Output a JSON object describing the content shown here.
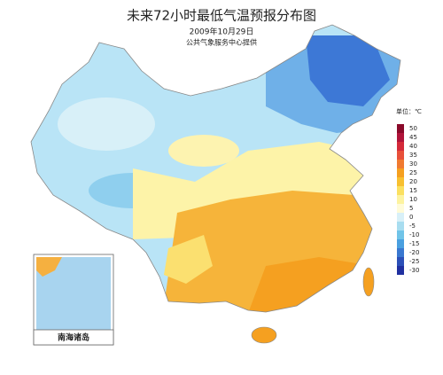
{
  "header": {
    "title": "未来72小时最低气温预报分布图",
    "date": "2009年10月29日",
    "source": "公共气象服务中心提供"
  },
  "legend": {
    "unit": "单位：℃",
    "ticks": [
      50,
      45,
      40,
      35,
      30,
      25,
      20,
      15,
      10,
      5,
      0,
      -5,
      -10,
      -15,
      -20,
      -25,
      -30
    ],
    "colors": [
      "#8a0a2a",
      "#b0143a",
      "#d42a3a",
      "#e8503a",
      "#f07a30",
      "#f5a020",
      "#f8c030",
      "#fbe060",
      "#fdf3a0",
      "#fffbd8",
      "#d8f0f8",
      "#a8ddf0",
      "#70c4e8",
      "#4aa0e0",
      "#3a78d0",
      "#2c50b8",
      "#2030a0"
    ]
  },
  "inset": {
    "label": "南海诸岛"
  }
}
